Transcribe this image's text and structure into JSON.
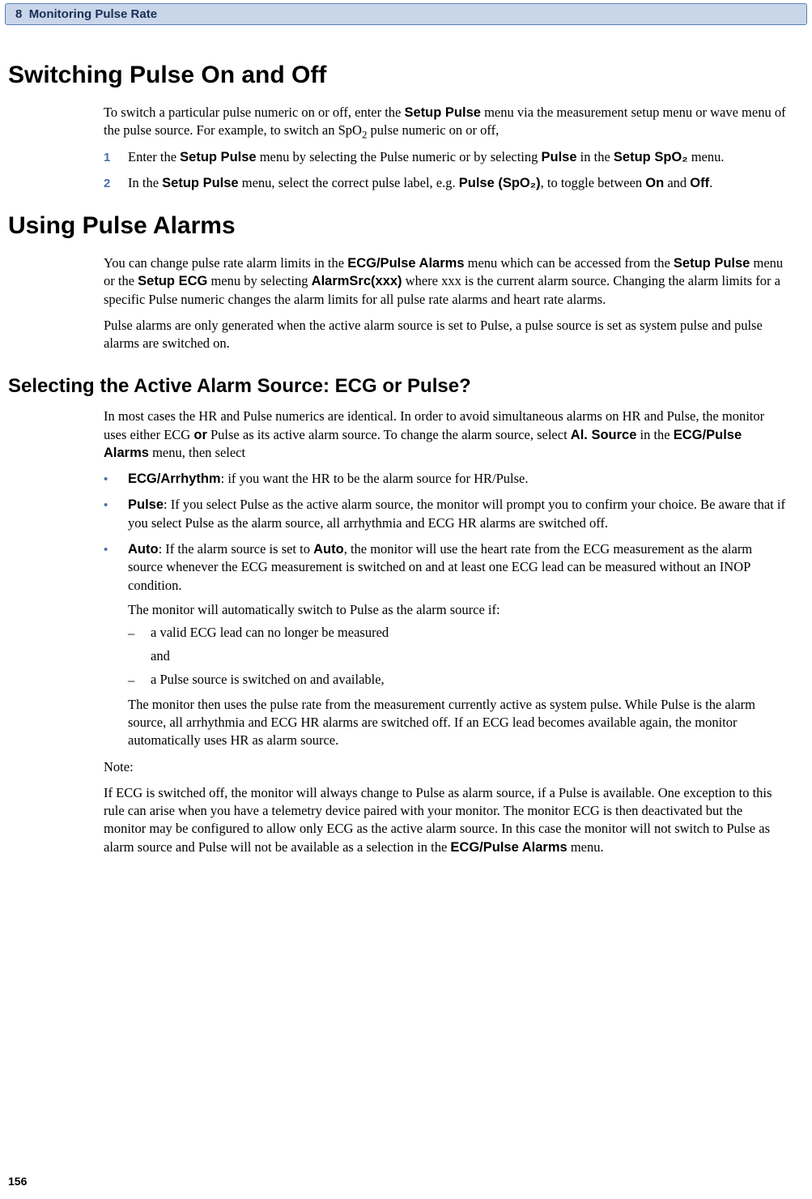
{
  "header": {
    "chapter_num": "8",
    "chapter_title": "Monitoring Pulse Rate"
  },
  "page_number": "156",
  "h1_switching": "Switching Pulse On and Off",
  "switching_intro_a": "To switch a particular pulse numeric on or off, enter the ",
  "switching_intro_b": " menu via the measurement setup menu or wave menu of the pulse source. For example, to switch an SpO",
  "switching_intro_c": " pulse numeric on or off,",
  "menus": {
    "setup_pulse": "Setup Pulse",
    "pulse": "Pulse",
    "setup_spo2": "Setup SpO₂",
    "pulse_spo2": "Pulse (SpO₂)",
    "on": "On",
    "off": "Off",
    "ecg_pulse_alarms": "ECG/Pulse Alarms",
    "setup_ecg": "Setup ECG",
    "alarm_src": "AlarmSrc(xxx)",
    "al_source": "Al. Source",
    "ecg_arrhythm": "ECG/Arrhythm",
    "auto": "Auto",
    "or": "or"
  },
  "step1_a": "Enter the ",
  "step1_b": " menu by selecting the Pulse numeric or by selecting ",
  "step1_c": " in the ",
  "step1_d": " menu.",
  "step2_a": "In the ",
  "step2_b": " menu, select the correct pulse label, e.g. ",
  "step2_c": ", to toggle between ",
  "step2_d": " and ",
  "step2_e": ".",
  "h1_using": "Using Pulse Alarms",
  "using_p1_a": "You can change pulse rate alarm limits in the ",
  "using_p1_b": " menu which can be accessed from the ",
  "using_p1_c": " menu or the ",
  "using_p1_d": " menu by selecting ",
  "using_p1_e": " where xxx is the current alarm source. Changing the alarm limits for a specific Pulse numeric changes the alarm limits for all pulse rate alarms and heart rate alarms.",
  "using_p2": "Pulse alarms are only generated when the active alarm source is set to Pulse, a pulse source is set as system pulse and pulse alarms are switched on.",
  "h2_selecting": "Selecting the Active Alarm Source: ECG or Pulse?",
  "selecting_p1_a": "In most cases the HR and Pulse numerics are identical. In order to avoid simultaneous alarms on HR and Pulse, the monitor uses either ECG ",
  "selecting_p1_b": " Pulse as its active alarm source. To change the alarm source, select ",
  "selecting_p1_c": " in the ",
  "selecting_p1_d": " menu, then select",
  "bullet1_a": ": if you want the HR to be the alarm source for HR/Pulse.",
  "bullet2_a": ": If you select Pulse as the active alarm source, the monitor will prompt you to confirm your choice. Be aware that if you select Pulse as the alarm source, all arrhythmia and ECG HR alarms are switched off.",
  "bullet3_a": ": If the alarm source is set to ",
  "bullet3_b": ", the monitor will use the heart rate from the ECG measurement as the alarm source whenever the ECG measurement is switched on and at least one ECG lead can be measured without an INOP condition.",
  "bullet3_sub1": "The monitor will automatically switch to Pulse as the alarm source if:",
  "dash1": "a valid ECG lead can no longer be measured",
  "and_text": "and",
  "dash2": "a Pulse source is switched on and available,",
  "bullet3_sub2": "The monitor then uses the pulse rate from the measurement currently active as system pulse. While Pulse is the alarm source, all arrhythmia and ECG HR alarms are switched off. If an ECG lead becomes available again, the monitor automatically uses HR as alarm source.",
  "note_label": "Note:",
  "note_body_a": "If ECG is switched off, the monitor will always change to Pulse as alarm source, if a Pulse is available. One exception to this rule can arise when you have a telemetry device paired with your monitor. The monitor ECG is then deactivated but the monitor may be configured to allow only ECG as the active alarm source. In this case the monitor will not switch to Pulse as alarm source and Pulse will not be available as a selection in the ",
  "note_body_b": " menu."
}
